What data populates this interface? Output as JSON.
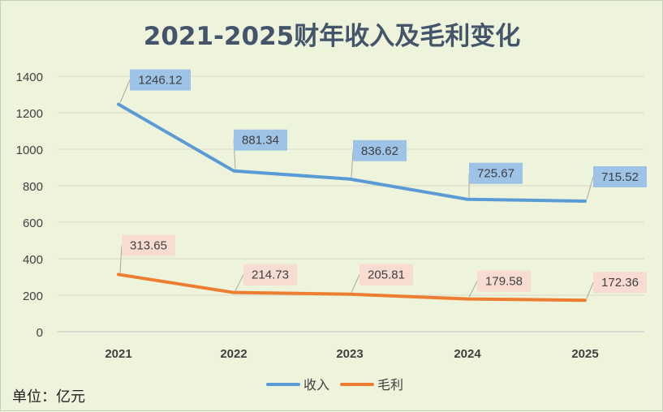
{
  "chart_data": {
    "type": "line",
    "title": "2021-2025财年收入及毛利变化",
    "categories": [
      "2021",
      "2022",
      "2023",
      "2024",
      "2025"
    ],
    "ylim": [
      0,
      1400
    ],
    "yticks": [
      0,
      200,
      400,
      600,
      800,
      1000,
      1200,
      1400
    ],
    "grid": true,
    "legend_position": "bottom",
    "series": [
      {
        "name": "收入",
        "color": "#5b9bd5",
        "label_bg": "#9dc3e6",
        "values": [
          1246.12,
          881.34,
          836.62,
          725.67,
          715.52
        ],
        "labels": [
          "1246.12",
          "881.34",
          "836.62",
          "725.67",
          "715.52"
        ]
      },
      {
        "name": "毛利",
        "color": "#ed7d31",
        "label_bg": "#f8dcd2",
        "values": [
          313.65,
          214.73,
          205.81,
          179.58,
          172.36
        ],
        "labels": [
          "313.65",
          "214.73",
          "205.81",
          "179.58",
          "172.36"
        ]
      }
    ]
  },
  "footnote": "单位：亿元"
}
